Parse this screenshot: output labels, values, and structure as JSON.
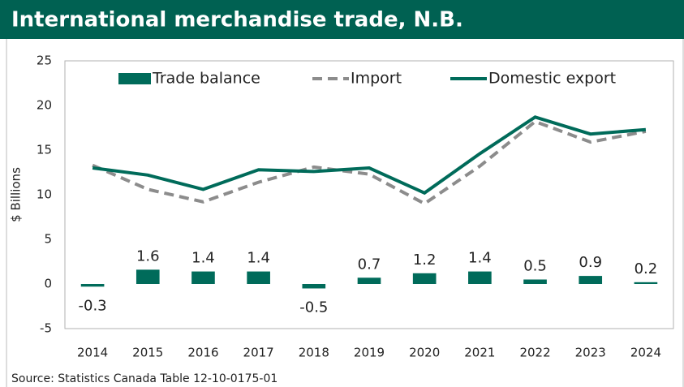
{
  "chart_data": {
    "type": "bar",
    "title": "International merchandise trade, N.B.",
    "y_label": "$ Billions",
    "source": "Source: Statistics Canada Table 12-10-0175-01",
    "categories": [
      "2014",
      "2015",
      "2016",
      "2017",
      "2018",
      "2019",
      "2020",
      "2021",
      "2022",
      "2023",
      "2024"
    ],
    "series": [
      {
        "name": "Trade balance",
        "type": "bar",
        "color": "#006b5a",
        "values": [
          -0.3,
          1.6,
          1.4,
          1.4,
          -0.5,
          0.7,
          1.2,
          1.4,
          0.5,
          0.9,
          0.2
        ]
      },
      {
        "name": "Import",
        "type": "line",
        "style": "dashed",
        "color": "#8c8c8c",
        "values": [
          13.3,
          10.6,
          9.2,
          11.4,
          13.1,
          12.3,
          9.0,
          13.2,
          18.2,
          15.9,
          17.1
        ]
      },
      {
        "name": "Domestic export",
        "type": "line",
        "style": "solid",
        "color": "#006b5a",
        "values": [
          13.0,
          12.2,
          10.6,
          12.8,
          12.6,
          13.0,
          10.2,
          14.6,
          18.7,
          16.8,
          17.3
        ]
      }
    ],
    "ylim": [
      -5,
      25
    ],
    "yticks": [
      -5,
      0,
      5,
      10,
      15,
      20,
      25
    ],
    "grid": false,
    "legend": "top"
  }
}
